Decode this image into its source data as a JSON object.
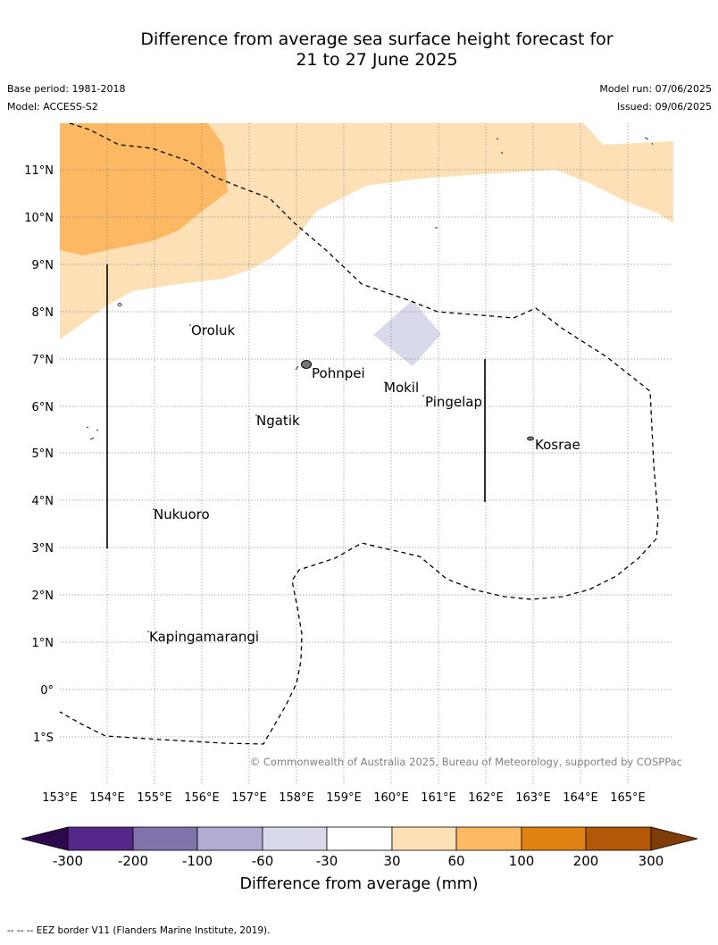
{
  "header": {
    "title_line1": "Difference from average sea surface height forecast for",
    "title_line2": "21 to 27 June 2025",
    "base_period": "Base period: 1981-2018",
    "model": "Model: ACCESS-S2",
    "model_run": "Model run: 07/06/2025",
    "issued": "Issued: 09/06/2025"
  },
  "map": {
    "lat_labels": [
      "11°N",
      "10°N",
      "9°N",
      "8°N",
      "7°N",
      "6°N",
      "5°N",
      "4°N",
      "3°N",
      "2°N",
      "1°N",
      "0°",
      "1°S"
    ],
    "lon_labels": [
      "153°E",
      "154°E",
      "155°E",
      "156°E",
      "157°E",
      "158°E",
      "159°E",
      "160°E",
      "161°E",
      "162°E",
      "163°E",
      "164°E",
      "165°E"
    ],
    "places": [
      "Oroluk",
      "Pohnpei",
      "Mokil",
      "Pingelap",
      "Ngatik",
      "Kosrae",
      "Nukuoro",
      "Kapingamarangi"
    ],
    "copyright": "© Commonwealth of Australia 2025, Bureau of Meteorology, supported by COSPPac"
  },
  "legend": {
    "ticks": [
      "-300",
      "-200",
      "-100",
      "-60",
      "-30",
      "30",
      "60",
      "100",
      "200",
      "300"
    ],
    "label": "Difference from average (mm)",
    "colors": [
      "#2d0a4e",
      "#542788",
      "#8073ac",
      "#b2abd2",
      "#d8daeb",
      "#ffffff",
      "#fee0b6",
      "#fdb863",
      "#e08214",
      "#b35806",
      "#7f3b08"
    ]
  },
  "footer": {
    "eez_note": "--  --  -- EEZ border V11 (Flanders Marine Institute, 2019)."
  }
}
